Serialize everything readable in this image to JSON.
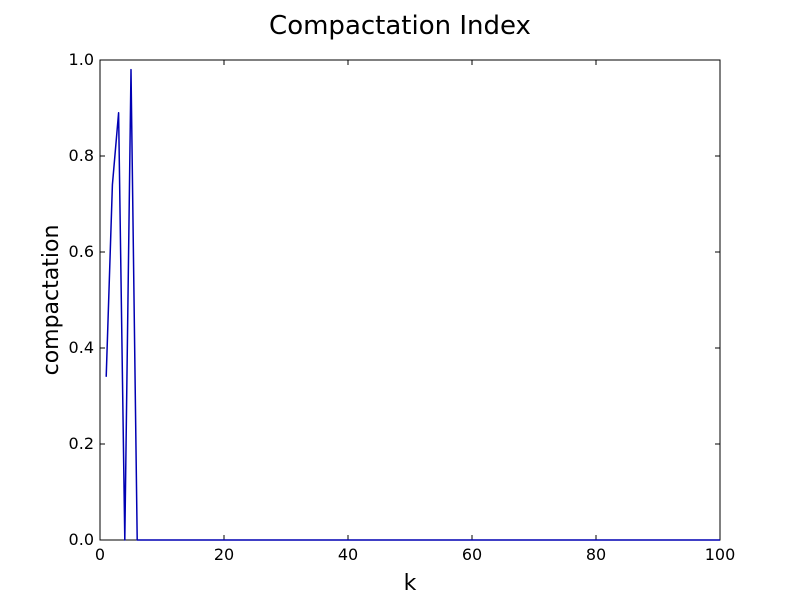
{
  "chart_data": {
    "type": "line",
    "title": "Compactation Index",
    "xlabel": "k",
    "ylabel": "compactation",
    "xlim": [
      0,
      100
    ],
    "ylim": [
      0.0,
      1.0
    ],
    "x_ticks": [
      0,
      20,
      40,
      60,
      80,
      100
    ],
    "x_tick_labels": [
      "0",
      "20",
      "40",
      "60",
      "80",
      "100"
    ],
    "y_ticks": [
      0.0,
      0.2,
      0.4,
      0.6,
      0.8,
      1.0
    ],
    "y_tick_labels": [
      "0.0",
      "0.2",
      "0.4",
      "0.6",
      "0.8",
      "1.0"
    ],
    "grid": false,
    "series": [
      {
        "color": "#0000b3",
        "x": [
          1,
          2,
          3,
          4,
          5,
          6,
          7,
          10,
          20,
          30,
          40,
          50,
          60,
          70,
          80,
          90,
          100
        ],
        "y": [
          0.34,
          0.74,
          0.89,
          0.0,
          0.98,
          0.0,
          0.0,
          0.0,
          0.0,
          0.0,
          0.0,
          0.0,
          0.0,
          0.0,
          0.0,
          0.0,
          0.0
        ]
      }
    ]
  }
}
